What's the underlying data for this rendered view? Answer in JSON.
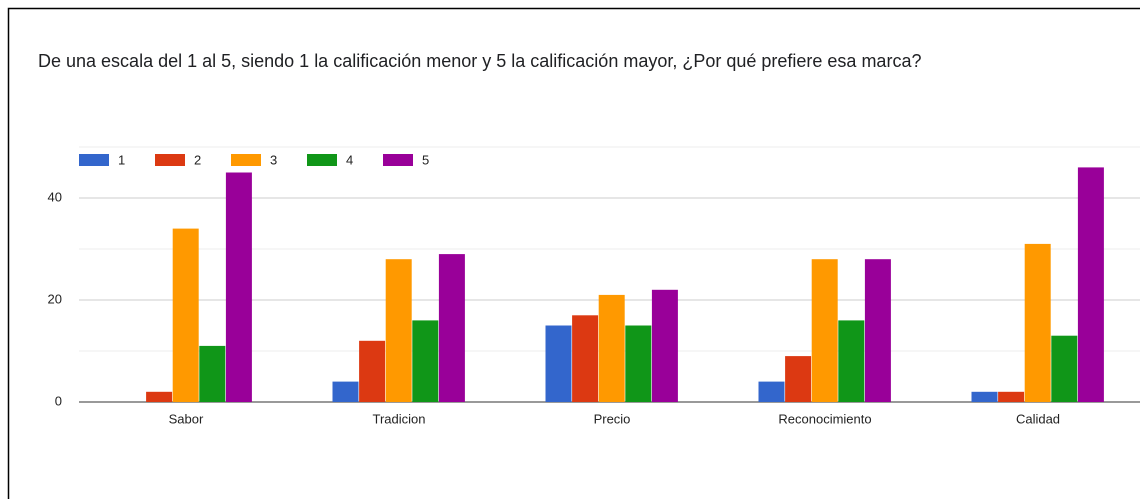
{
  "chart_data": {
    "type": "bar",
    "title": "De una escala del 1 al 5, siendo 1 la calificación menor y 5 la calificación mayor, ¿Por qué prefiere esa marca?",
    "categories": [
      "Sabor",
      "Tradicion",
      "Precio",
      "Reconocimiento",
      "Calidad"
    ],
    "series": [
      {
        "name": "1",
        "color": "#3366cc",
        "values": [
          0,
          4,
          15,
          4,
          2
        ]
      },
      {
        "name": "2",
        "color": "#dc3912",
        "values": [
          2,
          12,
          17,
          9,
          2
        ]
      },
      {
        "name": "3",
        "color": "#ff9900",
        "values": [
          34,
          28,
          21,
          28,
          31
        ]
      },
      {
        "name": "4",
        "color": "#109618",
        "values": [
          11,
          16,
          15,
          16,
          13
        ]
      },
      {
        "name": "5",
        "color": "#990099",
        "values": [
          45,
          29,
          22,
          28,
          46
        ]
      }
    ],
    "ylim": [
      0,
      50
    ],
    "yticks": [
      0,
      20,
      40
    ],
    "minor_yticks": [
      10,
      30,
      50
    ],
    "grid": true,
    "legend": "top"
  }
}
